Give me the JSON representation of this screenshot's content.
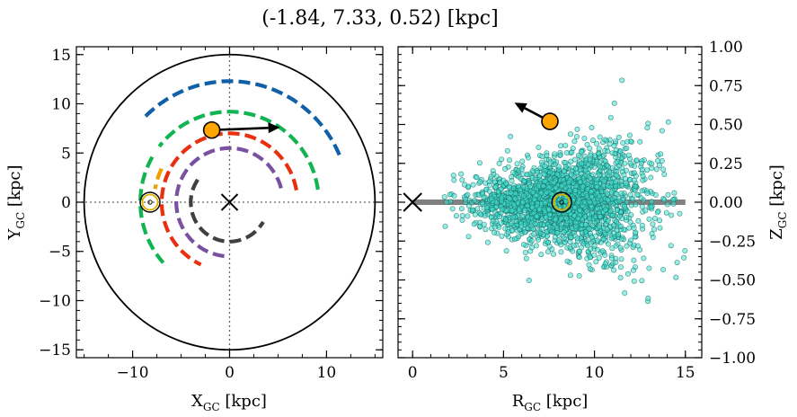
{
  "title": "(-1.84, 7.33, 0.52) [kpc]",
  "chart_data": [
    {
      "type": "scatter",
      "panel": "left",
      "xlabel_main": "X",
      "xlabel_sub": "GC",
      "xlabel_unit": " [kpc]",
      "ylabel_main": "Y",
      "ylabel_sub": "GC",
      "ylabel_unit": " [kpc]",
      "xlim": [
        -15.8,
        15.8
      ],
      "ylim": [
        -15.8,
        15.8
      ],
      "xticks": [
        -10,
        0,
        10
      ],
      "xtick_labels": [
        "−10",
        "0",
        "10"
      ],
      "yticks": [
        15,
        10,
        5,
        0,
        -5,
        -10,
        -15
      ],
      "ytick_labels": [
        "15",
        "10",
        "5",
        "0",
        "−5",
        "−10",
        "−15"
      ],
      "boundary_circle_radius": 15,
      "galactic_center": [
        0,
        0
      ],
      "object_position": [
        -1.84,
        7.33
      ],
      "velocity_arrow_to": [
        5.2,
        7.6
      ],
      "sun_position": [
        -8.2,
        0
      ],
      "spiral_arms": [
        {
          "color": "#1060a8",
          "radius": 12.3,
          "theta_deg": [
            23,
            137
          ]
        },
        {
          "color": "#10b450",
          "radius": 9.2,
          "theta_deg": [
            8,
            142
          ]
        },
        {
          "color": "#f0a000",
          "radius": 7.8,
          "theta_deg": [
            154,
            170
          ]
        },
        {
          "color": "#10b450",
          "radius": 9.2,
          "theta_deg": [
            150,
            222
          ]
        },
        {
          "color": "#e83010",
          "radius": 7.0,
          "theta_deg": [
            10,
            245
          ]
        },
        {
          "color": "#7a50a0",
          "radius": 5.5,
          "theta_deg": [
            15,
            265
          ]
        },
        {
          "color": "#404040",
          "radius": 4.0,
          "theta_deg": [
            145,
            330
          ]
        }
      ]
    },
    {
      "type": "scatter",
      "panel": "right",
      "xlabel_main": "R",
      "xlabel_sub": "GC",
      "xlabel_unit": " [kpc]",
      "ylabel_main": "Z",
      "ylabel_sub": "GC",
      "ylabel_unit": " [kpc]",
      "xlim": [
        -0.8,
        15.9
      ],
      "ylim": [
        -1.0,
        1.0
      ],
      "xticks": [
        0,
        5,
        10,
        15
      ],
      "xtick_labels": [
        "0",
        "5",
        "10",
        "15"
      ],
      "yticks": [
        1.0,
        0.75,
        0.5,
        0.25,
        0.0,
        -0.25,
        -0.5,
        -0.75,
        -1.0
      ],
      "ytick_labels": [
        "1.00",
        "0.75",
        "0.50",
        "0.25",
        "0.00",
        "−0.25",
        "−0.50",
        "−0.75",
        "−1.00"
      ],
      "disk_line": {
        "from": [
          0,
          0
        ],
        "to": [
          15,
          0
        ],
        "color": "#808080"
      },
      "galactic_center": [
        0,
        0
      ],
      "object_position": [
        7.55,
        0.52
      ],
      "velocity_arrow_to": [
        5.6,
        0.64
      ],
      "sun_position": [
        8.2,
        0.0
      ],
      "stars_color": "#40e0d0",
      "stars_distribution": {
        "r_center": 8.3,
        "r_spread": 2.3,
        "z_spread_min": 0.05,
        "z_spread_max": 0.3,
        "count": 2300
      }
    }
  ]
}
